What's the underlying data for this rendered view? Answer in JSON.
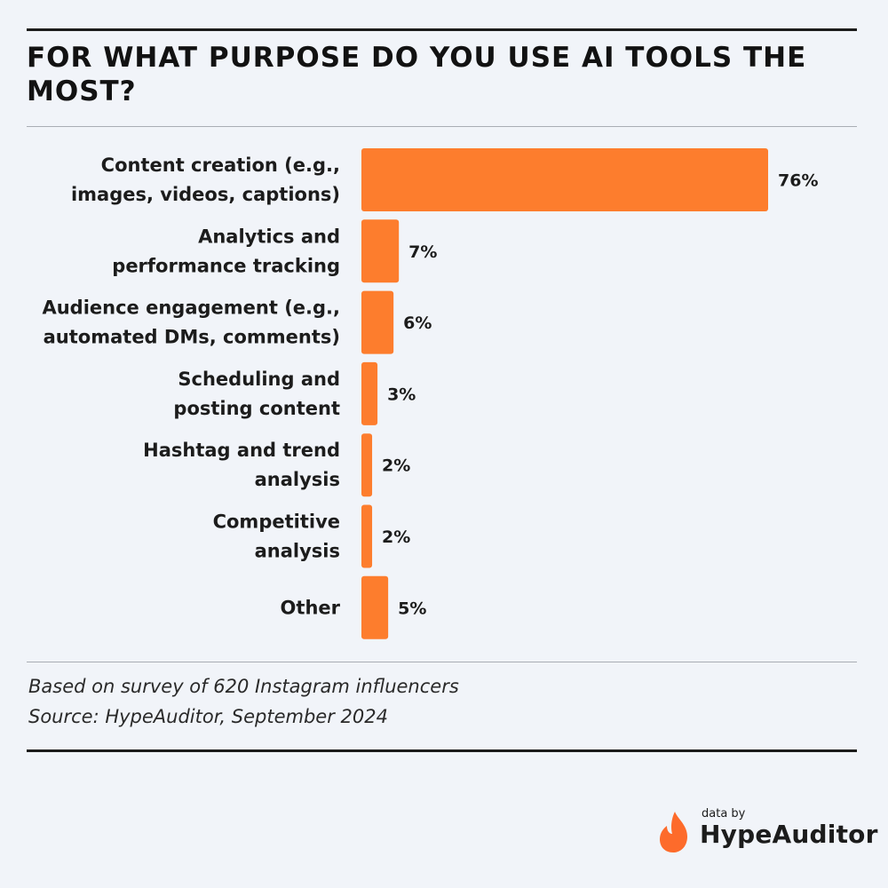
{
  "title": "FOR WHAT PURPOSE DO YOU USE AI TOOLS THE MOST?",
  "chart_data": {
    "type": "bar",
    "orientation": "horizontal",
    "categories": [
      [
        "Content creation (e.g.,",
        "images, videos, captions)"
      ],
      [
        "Analytics and",
        "performance tracking"
      ],
      [
        "Audience engagement (e.g.,",
        "automated DMs, comments)"
      ],
      [
        "Scheduling and",
        "posting content"
      ],
      [
        "Hashtag and trend",
        "analysis"
      ],
      [
        "Competitive",
        "analysis"
      ],
      [
        "Other"
      ]
    ],
    "values": [
      76,
      7,
      6,
      3,
      2,
      2,
      5
    ],
    "value_labels": [
      "76%",
      "7%",
      "6%",
      "3%",
      "2%",
      "2%",
      "5%"
    ],
    "unit": "%",
    "bar_color": "#fd7d2d",
    "grid": false,
    "legend": "none"
  },
  "footnote": {
    "line1": "Based on survey of 620 Instagram influencers",
    "line2": "Source: HypeAuditor, September 2024"
  },
  "brand": {
    "prefix": "data by",
    "name": "HypeAuditor",
    "logo_icon": "flame-icon",
    "logo_color": "#fd6b2b"
  }
}
